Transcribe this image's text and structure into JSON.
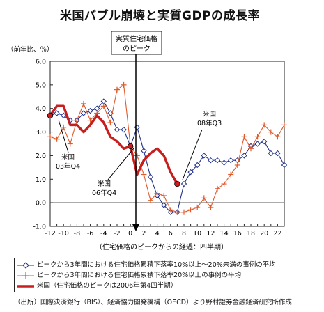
{
  "title": "米国バブル崩壊と実質GDPの成長率",
  "callout": {
    "line1": "実質住宅価格",
    "line2": "のピーク"
  },
  "unit_label": "（前年比、％）",
  "xlabel": "（住宅価格のピークからの経過：四半期）",
  "annotations": [
    {
      "line1": "米国",
      "line2": "03年Q4"
    },
    {
      "line1": "米国",
      "line2": "06年Q4"
    },
    {
      "line1": "米国",
      "line2": "08年Q3"
    }
  ],
  "legend": [
    "ピークから3年間における住宅価格累積下落率10%以上～20%未満の事例の平均",
    "ピークから3年間における住宅価格累積下落率20%以上の事例の平均",
    "米国（住宅価格のピークは2006年第4四半期）"
  ],
  "source": "（出所）国際決済銀行（BIS）、経済協力開発機構（OECD）より野村證券金融経済研究所作成",
  "chart_data": {
    "type": "line",
    "title": "米国バブル崩壊と実質GDPの成長率",
    "xlabel": "（住宅価格のピークからの経過：四半期）",
    "ylabel": "（前年比、％）",
    "xlim": [
      -12,
      23
    ],
    "ylim": [
      -1.0,
      6.0
    ],
    "xticks": [
      -12,
      -10,
      -8,
      -6,
      -4,
      -2,
      0,
      2,
      4,
      6,
      8,
      10,
      12,
      14,
      16,
      18,
      20,
      22
    ],
    "yticks": [
      -1.0,
      0.0,
      1.0,
      2.0,
      3.0,
      4.0,
      5.0,
      6.0
    ],
    "grid": false,
    "legend_position": "bottom",
    "series": [
      {
        "name": "ピークから3年間における住宅価格累積下落率10%以上～20%未満の事例の平均",
        "color": "#1f2f8a",
        "marker": "diamond",
        "x": [
          -12,
          -11,
          -10,
          -9,
          -8,
          -7,
          -6,
          -5,
          -4,
          -3,
          -2,
          -1,
          0,
          1,
          2,
          3,
          4,
          5,
          6,
          7,
          8,
          9,
          10,
          11,
          12,
          13,
          14,
          15,
          16,
          17,
          18,
          19,
          20,
          21,
          22,
          23
        ],
        "y": [
          3.7,
          3.8,
          3.7,
          3.5,
          3.5,
          3.8,
          3.9,
          4.0,
          4.3,
          3.8,
          3.1,
          3.1,
          2.4,
          3.2,
          2.2,
          1.1,
          0.3,
          -0.1,
          -0.4,
          -0.4,
          0.8,
          1.3,
          1.6,
          2.0,
          1.8,
          1.8,
          1.7,
          1.8,
          1.8,
          2.0,
          2.4,
          2.5,
          2.6,
          2.1,
          2.1,
          1.6
        ]
      },
      {
        "name": "ピークから3年間における住宅価格累積下落率20%以上の事例の平均",
        "color": "#e05a2a",
        "marker": "plus",
        "x": [
          -12,
          -11,
          -10,
          -9,
          -8,
          -7,
          -6,
          -5,
          -4,
          -3,
          -2,
          -1,
          0,
          1,
          2,
          3,
          4,
          5,
          6,
          7,
          8,
          9,
          10,
          11,
          12,
          13,
          14,
          15,
          16,
          17,
          18,
          19,
          20,
          21,
          22,
          23
        ],
        "y": [
          2.8,
          2.7,
          3.2,
          2.5,
          3.5,
          4.2,
          3.5,
          3.8,
          4.1,
          3.4,
          4.8,
          5.0,
          2.4,
          2.0,
          1.2,
          0.1,
          0.4,
          0.3,
          -0.3,
          -0.4,
          -0.4,
          -0.3,
          -0.2,
          0.2,
          -0.2,
          0.6,
          0.8,
          1.2,
          1.6,
          2.8,
          2.3,
          2.8,
          3.3,
          3.0,
          2.8,
          3.3
        ]
      },
      {
        "name": "米国（住宅価格のピークは2006年第4四半期）",
        "color": "#c81e1e",
        "marker": "none",
        "x": [
          -12,
          -11,
          -10,
          -9,
          -8,
          -7,
          -6,
          -5,
          -4,
          -3,
          -2,
          -1,
          0,
          1,
          2,
          3,
          4,
          5,
          6,
          7
        ],
        "y": [
          3.7,
          4.1,
          4.1,
          3.3,
          3.3,
          3.0,
          3.3,
          3.7,
          3.4,
          2.8,
          2.6,
          2.3,
          2.4,
          1.2,
          1.8,
          2.1,
          2.3,
          2.0,
          1.3,
          0.8
        ]
      }
    ]
  }
}
